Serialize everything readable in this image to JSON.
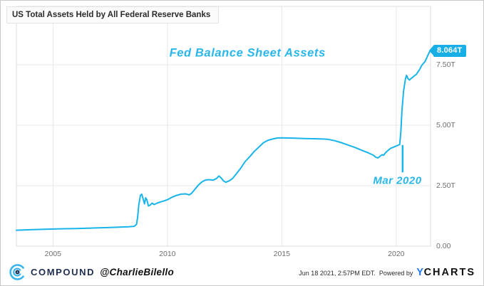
{
  "header": {
    "title": "US Total Assets Held by All Federal Reserve Banks"
  },
  "chart_data": {
    "type": "line",
    "title": "US Total Assets Held by All Federal Reserve Banks",
    "xlabel": "",
    "ylabel": "",
    "x_range": [
      2003.4,
      2021.5
    ],
    "y_range": [
      0,
      9.91
    ],
    "grid": true,
    "x_ticks": [
      {
        "value": 2005,
        "label": "2005"
      },
      {
        "value": 2010,
        "label": "2010"
      },
      {
        "value": 2015,
        "label": "2015"
      },
      {
        "value": 2020,
        "label": "2020"
      }
    ],
    "y_ticks": [
      {
        "value": 0,
        "label": "0.00"
      },
      {
        "value": 2.5,
        "label": "2.50T"
      },
      {
        "value": 5,
        "label": "5.00T"
      },
      {
        "value": 7.5,
        "label": "7.50T"
      }
    ],
    "last_value_label": "8.064T",
    "annotations": {
      "series_label": {
        "text": "Fed Balance Sheet Assets",
        "year": 2013.5,
        "value": 7.97
      },
      "event_text": {
        "text": "Mar 2020",
        "year": 2020.05,
        "value": 2.7
      },
      "event_line": {
        "year": 2020.28,
        "value_from": 4.18,
        "value_to": 3.05
      }
    },
    "series": [
      {
        "name": "Fed Balance Sheet Assets (USD Trillions)",
        "color": "#18b4ea",
        "points": [
          [
            2003.4,
            0.66
          ],
          [
            2004.0,
            0.68
          ],
          [
            2004.5,
            0.695
          ],
          [
            2005.0,
            0.71
          ],
          [
            2005.5,
            0.72
          ],
          [
            2006.0,
            0.73
          ],
          [
            2006.5,
            0.74
          ],
          [
            2007.0,
            0.755
          ],
          [
            2007.5,
            0.77
          ],
          [
            2008.0,
            0.79
          ],
          [
            2008.3,
            0.8
          ],
          [
            2008.55,
            0.82
          ],
          [
            2008.65,
            0.9
          ],
          [
            2008.7,
            1.2
          ],
          [
            2008.75,
            1.7
          ],
          [
            2008.82,
            2.1
          ],
          [
            2008.88,
            2.15
          ],
          [
            2008.93,
            1.98
          ],
          [
            2009.0,
            1.75
          ],
          [
            2009.05,
            2.0
          ],
          [
            2009.1,
            1.92
          ],
          [
            2009.17,
            1.66
          ],
          [
            2009.25,
            1.7
          ],
          [
            2009.33,
            1.78
          ],
          [
            2009.42,
            1.72
          ],
          [
            2009.55,
            1.78
          ],
          [
            2009.7,
            1.83
          ],
          [
            2009.85,
            1.87
          ],
          [
            2010.0,
            1.92
          ],
          [
            2010.2,
            2.02
          ],
          [
            2010.4,
            2.1
          ],
          [
            2010.6,
            2.15
          ],
          [
            2010.8,
            2.16
          ],
          [
            2010.95,
            2.12
          ],
          [
            2011.05,
            2.18
          ],
          [
            2011.2,
            2.35
          ],
          [
            2011.35,
            2.52
          ],
          [
            2011.5,
            2.65
          ],
          [
            2011.65,
            2.73
          ],
          [
            2011.8,
            2.75
          ],
          [
            2012.0,
            2.73
          ],
          [
            2012.15,
            2.8
          ],
          [
            2012.25,
            2.9
          ],
          [
            2012.35,
            2.82
          ],
          [
            2012.45,
            2.7
          ],
          [
            2012.55,
            2.64
          ],
          [
            2012.7,
            2.7
          ],
          [
            2012.85,
            2.8
          ],
          [
            2013.0,
            2.98
          ],
          [
            2013.2,
            3.22
          ],
          [
            2013.4,
            3.5
          ],
          [
            2013.6,
            3.7
          ],
          [
            2013.8,
            3.92
          ],
          [
            2014.0,
            4.1
          ],
          [
            2014.2,
            4.28
          ],
          [
            2014.4,
            4.38
          ],
          [
            2014.6,
            4.43
          ],
          [
            2014.8,
            4.47
          ],
          [
            2015.0,
            4.48
          ],
          [
            2015.3,
            4.47
          ],
          [
            2015.6,
            4.46
          ],
          [
            2016.0,
            4.45
          ],
          [
            2016.4,
            4.44
          ],
          [
            2016.8,
            4.43
          ],
          [
            2017.0,
            4.42
          ],
          [
            2017.3,
            4.36
          ],
          [
            2017.6,
            4.28
          ],
          [
            2017.9,
            4.18
          ],
          [
            2018.2,
            4.08
          ],
          [
            2018.5,
            3.96
          ],
          [
            2018.8,
            3.85
          ],
          [
            2019.0,
            3.76
          ],
          [
            2019.1,
            3.68
          ],
          [
            2019.2,
            3.65
          ],
          [
            2019.3,
            3.72
          ],
          [
            2019.38,
            3.78
          ],
          [
            2019.45,
            3.76
          ],
          [
            2019.55,
            3.88
          ],
          [
            2019.65,
            3.96
          ],
          [
            2019.75,
            4.04
          ],
          [
            2019.85,
            4.08
          ],
          [
            2019.95,
            4.12
          ],
          [
            2020.05,
            4.16
          ],
          [
            2020.15,
            4.2
          ],
          [
            2020.2,
            4.7
          ],
          [
            2020.25,
            5.6
          ],
          [
            2020.32,
            6.4
          ],
          [
            2020.4,
            6.9
          ],
          [
            2020.45,
            7.06
          ],
          [
            2020.52,
            6.92
          ],
          [
            2020.58,
            6.87
          ],
          [
            2020.65,
            6.93
          ],
          [
            2020.72,
            6.98
          ],
          [
            2020.8,
            7.05
          ],
          [
            2020.88,
            7.1
          ],
          [
            2020.95,
            7.2
          ],
          [
            2021.02,
            7.3
          ],
          [
            2021.1,
            7.45
          ],
          [
            2021.18,
            7.55
          ],
          [
            2021.25,
            7.62
          ],
          [
            2021.32,
            7.75
          ],
          [
            2021.38,
            7.88
          ],
          [
            2021.44,
            8.0
          ],
          [
            2021.47,
            8.064
          ]
        ]
      }
    ]
  },
  "footer": {
    "brand": "COMPOUND",
    "handle": "@CharlieBilello",
    "timestamp": "Jun 18 2021, 2:57PM EDT.",
    "powered_by": "Powered by",
    "ycharts_y": "Y",
    "ycharts_rest": "CHARTS"
  },
  "colors": {
    "line": "#18b4ea",
    "annotation_text": "#29b6ea",
    "tag_bg": "#18aee6",
    "tag_text": "#ffffff",
    "brand_navy": "#1f2d50",
    "ycharts_blue": "#2176f5",
    "tick_text": "#6f6f6f",
    "gridline": "#e8e8e8"
  }
}
